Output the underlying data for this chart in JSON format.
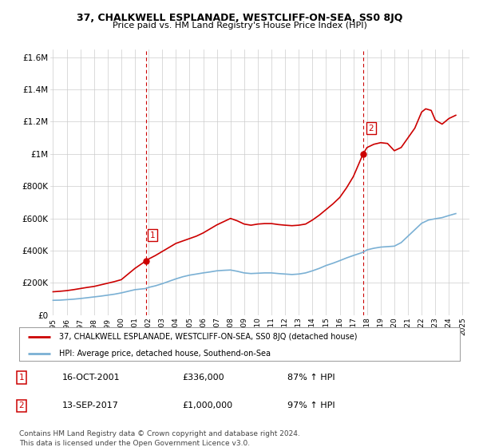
{
  "title": "37, CHALKWELL ESPLANADE, WESTCLIFF-ON-SEA, SS0 8JQ",
  "subtitle": "Price paid vs. HM Land Registry's House Price Index (HPI)",
  "ylim": [
    0,
    1650000
  ],
  "yticks": [
    0,
    200000,
    400000,
    600000,
    800000,
    1000000,
    1200000,
    1400000,
    1600000
  ],
  "ytick_labels": [
    "£0",
    "£200K",
    "£400K",
    "£600K",
    "£800K",
    "£1M",
    "£1.2M",
    "£1.4M",
    "£1.6M"
  ],
  "xlim_start": 1994.8,
  "xlim_end": 2025.5,
  "xtick_years": [
    1995,
    1996,
    1997,
    1998,
    1999,
    2000,
    2001,
    2002,
    2003,
    2004,
    2005,
    2006,
    2007,
    2008,
    2009,
    2010,
    2011,
    2012,
    2013,
    2014,
    2015,
    2016,
    2017,
    2018,
    2019,
    2020,
    2021,
    2022,
    2023,
    2024,
    2025
  ],
  "sale1_x": 2001.79,
  "sale1_y": 336000,
  "sale2_x": 2017.71,
  "sale2_y": 1000000,
  "vline1_x": 2001.79,
  "vline2_x": 2017.71,
  "red_line_color": "#cc0000",
  "blue_line_color": "#7ab0d4",
  "vline_color": "#cc0000",
  "legend_label_red": "37, CHALKWELL ESPLANADE, WESTCLIFF-ON-SEA, SS0 8JQ (detached house)",
  "legend_label_blue": "HPI: Average price, detached house, Southend-on-Sea",
  "annotation1_label": "1",
  "annotation2_label": "2",
  "table_row1": [
    "1",
    "16-OCT-2001",
    "£336,000",
    "87% ↑ HPI"
  ],
  "table_row2": [
    "2",
    "13-SEP-2017",
    "£1,000,000",
    "97% ↑ HPI"
  ],
  "footer": "Contains HM Land Registry data © Crown copyright and database right 2024.\nThis data is licensed under the Open Government Licence v3.0.",
  "bg_color": "#ffffff",
  "grid_color": "#cccccc",
  "red_pts_x": [
    1995.0,
    1995.5,
    1996.0,
    1996.5,
    1997.0,
    1997.5,
    1998.0,
    1998.5,
    1999.0,
    1999.5,
    2000.0,
    2000.5,
    2001.0,
    2001.79,
    2002.0,
    2002.5,
    2003.0,
    2003.5,
    2004.0,
    2004.5,
    2005.0,
    2005.5,
    2006.0,
    2006.5,
    2007.0,
    2007.5,
    2008.0,
    2008.5,
    2009.0,
    2009.5,
    2010.0,
    2010.5,
    2011.0,
    2011.5,
    2012.0,
    2012.5,
    2013.0,
    2013.5,
    2014.0,
    2014.5,
    2015.0,
    2015.5,
    2016.0,
    2016.5,
    2017.0,
    2017.71,
    2018.0,
    2018.5,
    2019.0,
    2019.5,
    2020.0,
    2020.5,
    2021.0,
    2021.5,
    2022.0,
    2022.3,
    2022.7,
    2023.0,
    2023.5,
    2024.0,
    2024.5
  ],
  "red_pts_y": [
    145000,
    148000,
    152000,
    158000,
    165000,
    172000,
    178000,
    188000,
    198000,
    208000,
    220000,
    255000,
    290000,
    336000,
    348000,
    370000,
    395000,
    420000,
    445000,
    460000,
    475000,
    490000,
    510000,
    535000,
    560000,
    580000,
    600000,
    585000,
    565000,
    558000,
    565000,
    568000,
    568000,
    562000,
    558000,
    555000,
    558000,
    565000,
    590000,
    620000,
    655000,
    690000,
    730000,
    790000,
    860000,
    1000000,
    1040000,
    1060000,
    1070000,
    1065000,
    1020000,
    1040000,
    1100000,
    1160000,
    1260000,
    1280000,
    1270000,
    1210000,
    1185000,
    1220000,
    1240000
  ],
  "blue_pts_x": [
    1995.0,
    1995.5,
    1996.0,
    1996.5,
    1997.0,
    1997.5,
    1998.0,
    1998.5,
    1999.0,
    1999.5,
    2000.0,
    2000.5,
    2001.0,
    2001.79,
    2002.0,
    2002.5,
    2003.0,
    2003.5,
    2004.0,
    2004.5,
    2005.0,
    2005.5,
    2006.0,
    2006.5,
    2007.0,
    2007.5,
    2008.0,
    2008.5,
    2009.0,
    2009.5,
    2010.0,
    2010.5,
    2011.0,
    2011.5,
    2012.0,
    2012.5,
    2013.0,
    2013.5,
    2014.0,
    2014.5,
    2015.0,
    2015.5,
    2016.0,
    2016.5,
    2017.0,
    2017.71,
    2018.0,
    2018.5,
    2019.0,
    2019.5,
    2020.0,
    2020.5,
    2021.0,
    2021.5,
    2022.0,
    2022.5,
    2023.0,
    2023.5,
    2024.0,
    2024.5
  ],
  "blue_pts_y": [
    92000,
    93000,
    96000,
    99000,
    103000,
    108000,
    113000,
    118000,
    124000,
    130000,
    138000,
    148000,
    158000,
    165000,
    172000,
    182000,
    195000,
    210000,
    225000,
    238000,
    248000,
    255000,
    262000,
    268000,
    275000,
    278000,
    280000,
    272000,
    262000,
    258000,
    260000,
    262000,
    262000,
    258000,
    255000,
    252000,
    255000,
    262000,
    275000,
    290000,
    308000,
    322000,
    338000,
    355000,
    370000,
    390000,
    405000,
    415000,
    422000,
    425000,
    428000,
    450000,
    490000,
    530000,
    570000,
    590000,
    598000,
    605000,
    618000,
    630000
  ]
}
